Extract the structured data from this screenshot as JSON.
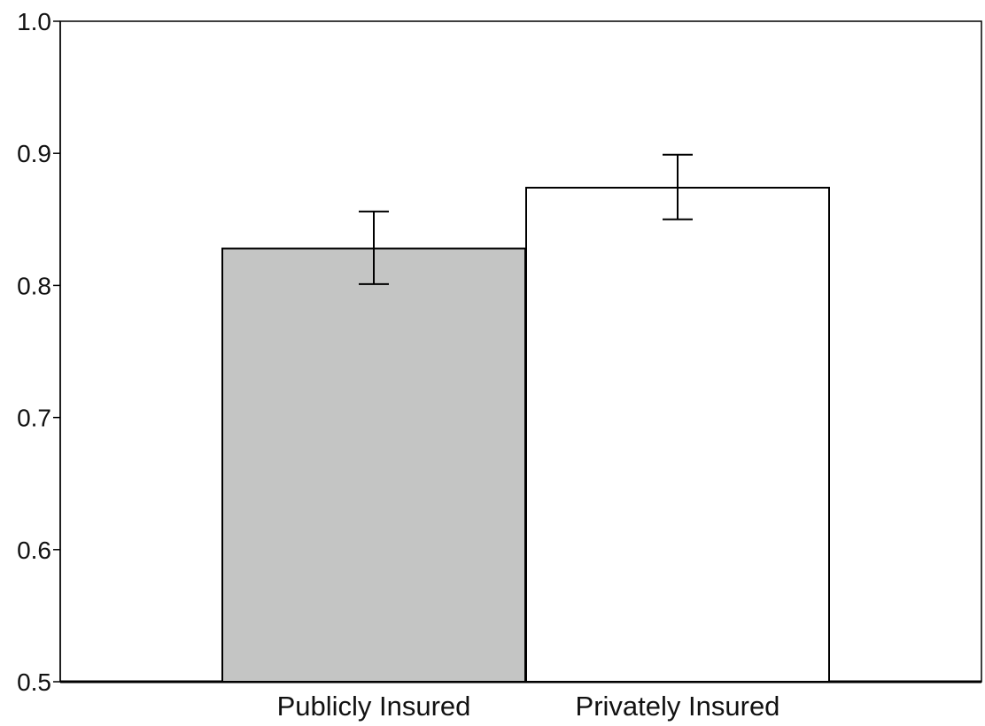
{
  "colors": {
    "public_bar": "#c4c5c4",
    "private_bar": "#ffffff",
    "stroke": "#000000"
  },
  "chart_data": {
    "type": "bar",
    "title": "",
    "xlabel": "",
    "ylabel": "",
    "categories": [
      "Publicly Insured",
      "Privately Insured"
    ],
    "values": [
      0.828,
      0.874
    ],
    "error_low": [
      0.801,
      0.85
    ],
    "error_high": [
      0.856,
      0.899
    ],
    "ylim": [
      0.5,
      1.0
    ],
    "yticks": [
      0.5,
      0.6,
      0.7,
      0.8,
      0.9,
      1.0
    ],
    "ytick_labels": [
      "0.5",
      "0.6",
      "0.7",
      "0.8",
      "0.9",
      "1.0"
    ],
    "grid": false,
    "legend": "none"
  }
}
